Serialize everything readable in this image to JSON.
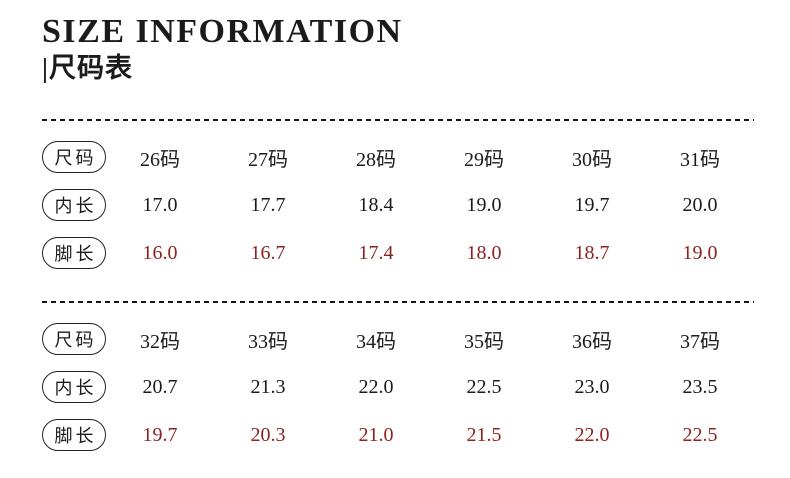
{
  "header": {
    "title": "SIZE INFORMATION",
    "subtitle": "|尺码表"
  },
  "colors": {
    "text": "#1b1b1b",
    "accent_red": "#8d2222",
    "background": "#ffffff"
  },
  "chart_data": {
    "type": "table",
    "title": "SIZE INFORMATION 尺码表",
    "row_headers": [
      "尺码",
      "内长",
      "脚长"
    ],
    "tables": [
      {
        "rows": [
          {
            "label": "尺码",
            "emphasis": "normal",
            "cells": [
              "26码",
              "27码",
              "28码",
              "29码",
              "30码",
              "31码"
            ]
          },
          {
            "label": "内长",
            "emphasis": "normal",
            "cells": [
              "17.0",
              "17.7",
              "18.4",
              "19.0",
              "19.7",
              "20.0"
            ]
          },
          {
            "label": "脚长",
            "emphasis": "red",
            "cells": [
              "16.0",
              "16.7",
              "17.4",
              "18.0",
              "18.7",
              "19.0"
            ]
          }
        ]
      },
      {
        "rows": [
          {
            "label": "尺码",
            "emphasis": "normal",
            "cells": [
              "32码",
              "33码",
              "34码",
              "35码",
              "36码",
              "37码"
            ]
          },
          {
            "label": "内长",
            "emphasis": "normal",
            "cells": [
              "20.7",
              "21.3",
              "22.0",
              "22.5",
              "23.0",
              "23.5"
            ]
          },
          {
            "label": "脚长",
            "emphasis": "red",
            "cells": [
              "19.7",
              "20.3",
              "21.0",
              "21.5",
              "22.0",
              "22.5"
            ]
          }
        ]
      }
    ]
  }
}
